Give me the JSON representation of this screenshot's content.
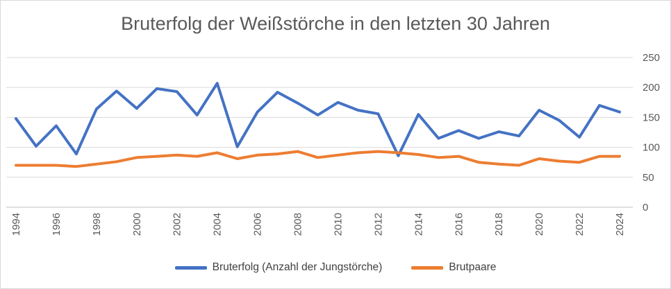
{
  "chart_data": {
    "type": "line",
    "title": "Bruterfolg der Weißstörche in den letzten 30 Jahren",
    "xlabel": "",
    "ylabel": "",
    "x": [
      1994,
      1995,
      1996,
      1997,
      1998,
      1999,
      2000,
      2001,
      2002,
      2003,
      2004,
      2005,
      2006,
      2007,
      2008,
      2009,
      2010,
      2011,
      2012,
      2013,
      2014,
      2015,
      2016,
      2017,
      2018,
      2019,
      2020,
      2021,
      2022,
      2023,
      2024
    ],
    "x_tick_labels": [
      "1994",
      "1996",
      "1998",
      "2000",
      "2002",
      "2004",
      "2006",
      "2008",
      "2010",
      "2012",
      "2014",
      "2016",
      "2018",
      "2020",
      "2022",
      "2024"
    ],
    "y_tick_labels": [
      "0",
      "50",
      "100",
      "150",
      "200",
      "250"
    ],
    "ylim": [
      0,
      250
    ],
    "y_axis_position": "right",
    "grid": true,
    "legend_position": "bottom",
    "series": [
      {
        "name": "Bruterfolg (Anzahl der Jungstörche)",
        "color": "#4472c4",
        "values": [
          148,
          102,
          136,
          89,
          164,
          194,
          165,
          198,
          193,
          154,
          207,
          101,
          159,
          192,
          174,
          154,
          175,
          162,
          156,
          86,
          155,
          115,
          128,
          115,
          126,
          119,
          162,
          145,
          117,
          170,
          159
        ]
      },
      {
        "name": "Brutpaare",
        "color": "#ed7d31",
        "values": [
          70,
          70,
          70,
          68,
          72,
          76,
          83,
          85,
          87,
          85,
          91,
          81,
          87,
          89,
          93,
          83,
          87,
          91,
          93,
          91,
          88,
          83,
          85,
          75,
          72,
          70,
          81,
          77,
          75,
          85,
          85
        ]
      }
    ]
  }
}
